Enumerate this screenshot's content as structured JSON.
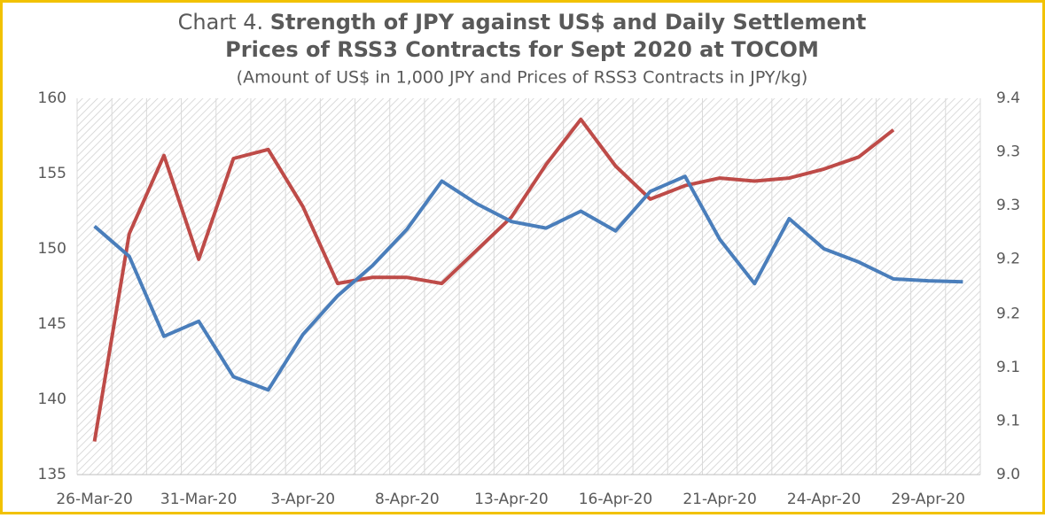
{
  "chart_data": {
    "type": "line",
    "title_label": "Chart 4.",
    "title": [
      "Strength of JPY against US$ and Daily Settlement",
      "Prices of RSS3 Contracts for Sept 2020 at TOCOM"
    ],
    "subtitle": "(Amount of US$ in 1,000 JPY and Prices of RSS3 Contracts in JPY/kg)",
    "categories": [
      "26-Mar-20",
      null,
      null,
      "31-Mar-20",
      null,
      null,
      "3-Apr-20",
      null,
      null,
      "8-Apr-20",
      null,
      null,
      "13-Apr-20",
      null,
      null,
      "16-Apr-20",
      null,
      null,
      "21-Apr-20",
      null,
      null,
      "24-Apr-20",
      null,
      null,
      "29-Apr-20",
      null
    ],
    "ylim": [
      135,
      160
    ],
    "yticks": [
      135,
      140,
      145,
      150,
      155,
      160
    ],
    "y2lim": [
      9.0,
      9.4
    ],
    "y2ticks": [
      {
        "value": 9.0,
        "label": "9.0"
      },
      {
        "value": 9.057,
        "label": "9.1"
      },
      {
        "value": 9.114,
        "label": "9.1"
      },
      {
        "value": 9.171,
        "label": "9.2"
      },
      {
        "value": 9.229,
        "label": "9.2"
      },
      {
        "value": 9.286,
        "label": "9.3"
      },
      {
        "value": 9.343,
        "label": "9.3"
      },
      {
        "value": 9.4,
        "label": "9.4"
      }
    ],
    "series": [
      {
        "color": "#be4b48",
        "axis": "y",
        "values": [
          137.2,
          151,
          156.2,
          149.3,
          156,
          156.6,
          152.8,
          147.7,
          148.1,
          148.1,
          147.7,
          149.9,
          152.1,
          155.6,
          158.6,
          155.5,
          153.3,
          154.2,
          154.7,
          154.5,
          154.7,
          155.3,
          156.1,
          157.9,
          null,
          null
        ]
      },
      {
        "color": "#4a7ebb",
        "axis": "y2",
        "values": [
          9.264,
          9.232,
          9.147,
          9.163,
          9.104,
          9.09,
          9.149,
          9.19,
          9.222,
          9.261,
          9.312,
          9.288,
          9.269,
          9.262,
          9.28,
          9.259,
          9.301,
          9.317,
          9.25,
          9.203,
          9.272,
          9.24,
          9.226,
          9.208,
          9.206,
          9.205
        ]
      }
    ]
  }
}
